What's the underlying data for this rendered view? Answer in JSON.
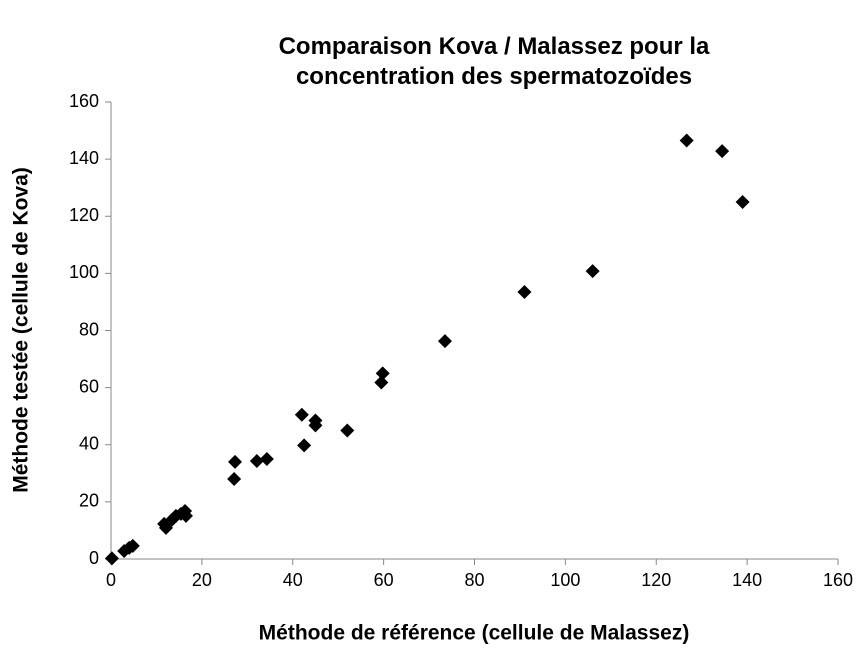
{
  "chart_data": {
    "type": "scatter",
    "title": "Comparaison Kova / Malassez pour la concentration des spermatozoïdes",
    "x_label": "Méthode de référence (cellule de Malassez)",
    "y_label": "Méthode testée (cellule de Kova)",
    "x": [
      0.2,
      2.9,
      4.0,
      4.8,
      11.7,
      12.1,
      13.4,
      14.3,
      15.4,
      16.3,
      16.5,
      27.1,
      27.3,
      32.1,
      34.3,
      42.0,
      42.5,
      45.0,
      45.0,
      52.0,
      59.5,
      59.8,
      73.5,
      91.0,
      106.0,
      126.7,
      134.5,
      139.0
    ],
    "y": [
      0.2,
      2.8,
      3.9,
      4.6,
      12.3,
      10.9,
      13.7,
      15.1,
      15.8,
      16.8,
      15.1,
      28.0,
      34.0,
      34.3,
      35.0,
      50.5,
      39.8,
      48.5,
      46.8,
      45.0,
      61.8,
      65.0,
      76.3,
      93.5,
      100.8,
      146.5,
      142.8,
      125.0
    ],
    "color": "#000000",
    "xlim": [
      0,
      160
    ],
    "xticks": [
      0,
      20,
      40,
      60,
      80,
      100,
      120,
      140,
      160
    ],
    "ylim": [
      0,
      160
    ],
    "yticks": [
      0,
      20,
      40,
      60,
      80,
      100,
      120,
      140,
      160
    ],
    "grid": false
  }
}
